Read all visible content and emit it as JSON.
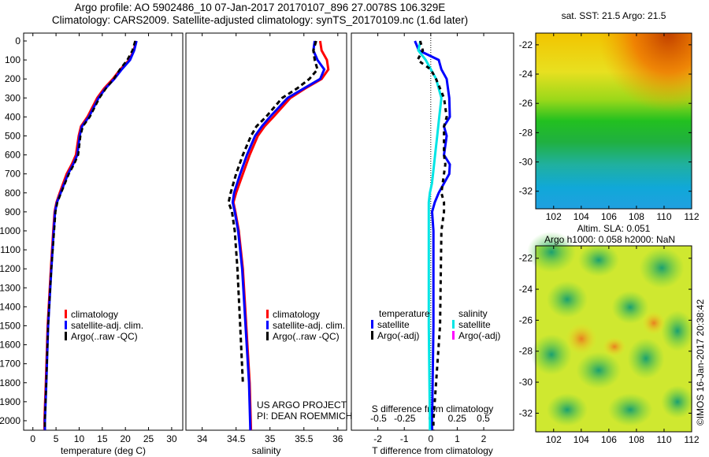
{
  "title_line1": "Argo profile: AO 5902486_10 07-Jan-2017 20170107_896 27.0078S 106.329E",
  "title_line2": "Climatology: CARS2009. Satellite-adjusted climatology: synTS_20170109.nc (1.6d later)",
  "credit": "©IMOS 16-Jan-2017 20:38:42",
  "project_line1": "US ARGO PROJECT",
  "project_line2": "PI: DEAN ROEMMICH",
  "colors": {
    "climatology": "#ff0000",
    "satellite": "#0000ff",
    "argo": "#000000",
    "sal_satellite": "#00e5e5",
    "sal_argo": "#ff00ff"
  },
  "chart_data": [
    {
      "type": "line",
      "name": "temperature",
      "xlabel": "temperature (deg C)",
      "xlim": [
        -2,
        32.4
      ],
      "ylim": [
        0,
        2050
      ],
      "xticks": [
        0,
        5,
        10,
        15,
        20,
        25,
        30
      ],
      "yticks": [
        0,
        100,
        200,
        300,
        400,
        500,
        600,
        700,
        800,
        900,
        1000,
        1100,
        1200,
        1300,
        1400,
        1500,
        1600,
        1700,
        1800,
        1900,
        2000
      ],
      "legend": [
        "climatology",
        "satellite-adj. clim.",
        "Argo(..raw -QC)"
      ],
      "legend_position": "lower-middle",
      "depth": [
        0,
        50,
        100,
        150,
        200,
        250,
        300,
        400,
        450,
        500,
        600,
        650,
        700,
        800,
        850,
        900,
        1000,
        1200,
        1500,
        1800,
        2000,
        2050
      ],
      "series": [
        {
          "name": "climatology",
          "values": [
            22.3,
            21.8,
            20.8,
            18.9,
            17.3,
            15.4,
            13.9,
            11.8,
            10.4,
            9.9,
            9.3,
            8.4,
            7.3,
            5.8,
            5.1,
            4.7,
            4.4,
            3.9,
            3.2,
            2.8,
            2.5,
            2.5
          ]
        },
        {
          "name": "satellite-adj. clim.",
          "values": [
            22.4,
            21.9,
            21.0,
            19.2,
            17.6,
            15.7,
            14.2,
            12.1,
            10.6,
            10.1,
            9.6,
            8.7,
            7.6,
            6.0,
            5.2,
            4.8,
            4.5,
            4.0,
            3.3,
            2.9,
            2.6,
            2.6
          ]
        },
        {
          "name": "Argo(..raw -QC)",
          "values": [
            22.1,
            21.5,
            20.4,
            18.8,
            17.5,
            15.8,
            14.4,
            12.3,
            10.8,
            10.3,
            9.8,
            8.9,
            7.8,
            6.1,
            5.3,
            4.9,
            4.6,
            4.0,
            3.3,
            2.9,
            2.6,
            2.6
          ]
        }
      ]
    },
    {
      "type": "line",
      "name": "salinity",
      "xlabel": "salinity",
      "xlim": [
        33.76,
        36.13
      ],
      "ylim": [
        0,
        2050
      ],
      "xticks": [
        34,
        34.5,
        35,
        35.5,
        36
      ],
      "legend": [
        "climatology",
        "satellite-adj. clim.",
        "Argo(..raw -QC)"
      ],
      "legend_position": "lower-middle",
      "depth": [
        0,
        50,
        100,
        150,
        200,
        250,
        300,
        400,
        450,
        500,
        600,
        700,
        800,
        850,
        900,
        1000,
        1200,
        1500,
        1800,
        2050
      ],
      "series": [
        {
          "name": "climatology",
          "values": [
            35.74,
            35.76,
            35.84,
            35.86,
            35.76,
            35.52,
            35.3,
            35.05,
            34.92,
            34.82,
            34.7,
            34.6,
            34.5,
            34.46,
            34.49,
            34.54,
            34.6,
            34.65,
            34.7,
            34.72
          ]
        },
        {
          "name": "satellite-adj. clim.",
          "values": [
            35.66,
            35.64,
            35.7,
            35.8,
            35.74,
            35.5,
            35.26,
            35.0,
            34.88,
            34.78,
            34.66,
            34.56,
            34.47,
            34.45,
            34.48,
            34.53,
            34.59,
            34.64,
            34.69,
            34.71
          ]
        },
        {
          "name": "Argo(..raw -QC)",
          "values": [
            35.68,
            35.64,
            35.66,
            35.7,
            35.58,
            35.4,
            35.18,
            34.94,
            34.8,
            34.72,
            34.6,
            34.5,
            34.42,
            34.39,
            34.44,
            34.48,
            34.52,
            34.56,
            34.6,
            34.62
          ]
        }
      ]
    },
    {
      "type": "line",
      "name": "difference",
      "xlabel": "T difference from climatology",
      "x2label": "S difference from climatology",
      "xlim": [
        -3.0,
        3.13
      ],
      "ylim": [
        0,
        2050
      ],
      "xticks": [
        -2,
        -1,
        0,
        1,
        2
      ],
      "x2ticks": [
        "-0.5",
        "-0.25",
        "0",
        "0.25",
        "0.5"
      ],
      "x2tick_values": [
        -0.5,
        -0.25,
        0,
        0.25,
        0.5
      ],
      "legend_headers": [
        "temperature",
        "salinity"
      ],
      "legend": [
        "satellite",
        "Argo(-adj)",
        "satellite",
        "Argo(-adj)"
      ],
      "depth": [
        0,
        50,
        100,
        150,
        200,
        300,
        400,
        450,
        500,
        600,
        650,
        700,
        750,
        800,
        850,
        900,
        1000,
        1500,
        2000,
        2050
      ],
      "series": [
        {
          "name": "temperature satellite",
          "values": [
            -0.6,
            -0.45,
            0.3,
            0.4,
            0.6,
            0.7,
            0.72,
            0.5,
            0.6,
            0.5,
            0.72,
            0.7,
            0.5,
            0.3,
            0.15,
            0.05,
            0.1,
            0.1,
            0.05,
            0.05
          ]
        },
        {
          "name": "salinity satellite",
          "values": [
            -0.1,
            -0.12,
            -0.05,
            0.0,
            0.05,
            0.1,
            0.08,
            0.07,
            0.06,
            0.04,
            0.03,
            0.02,
            0.01,
            -0.01,
            -0.02,
            -0.02,
            -0.02,
            -0.02,
            -0.01,
            -0.01
          ]
        },
        {
          "name": "temperature Argo(-adj)",
          "values": [
            -0.4,
            -0.3,
            -0.5,
            0.0,
            0.2,
            0.5,
            0.6,
            0.5,
            0.5,
            0.5,
            0.55,
            0.5,
            0.45,
            0.4,
            0.5,
            0.5,
            0.4,
            0.35,
            0.1,
            0.1
          ]
        }
      ]
    },
    {
      "type": "heatmap",
      "name": "sst-map",
      "title": "sat. SST: 21.5 Argo: 21.5",
      "xticks": [
        "102",
        "104",
        "106",
        "108",
        "110",
        "112"
      ],
      "yticks": [
        "-22",
        "-24",
        "-26",
        "-28",
        "-30",
        "-32"
      ]
    },
    {
      "type": "heatmap",
      "name": "sla-map",
      "title_line1": "Altim. SLA: 0.051",
      "title_line2": "Argo h1000: 0.058 h2000: NaN",
      "xticks": [
        "102",
        "104",
        "106",
        "108",
        "110",
        "112"
      ],
      "yticks": [
        "-22",
        "-24",
        "-26",
        "-28",
        "-30",
        "-32"
      ]
    }
  ]
}
